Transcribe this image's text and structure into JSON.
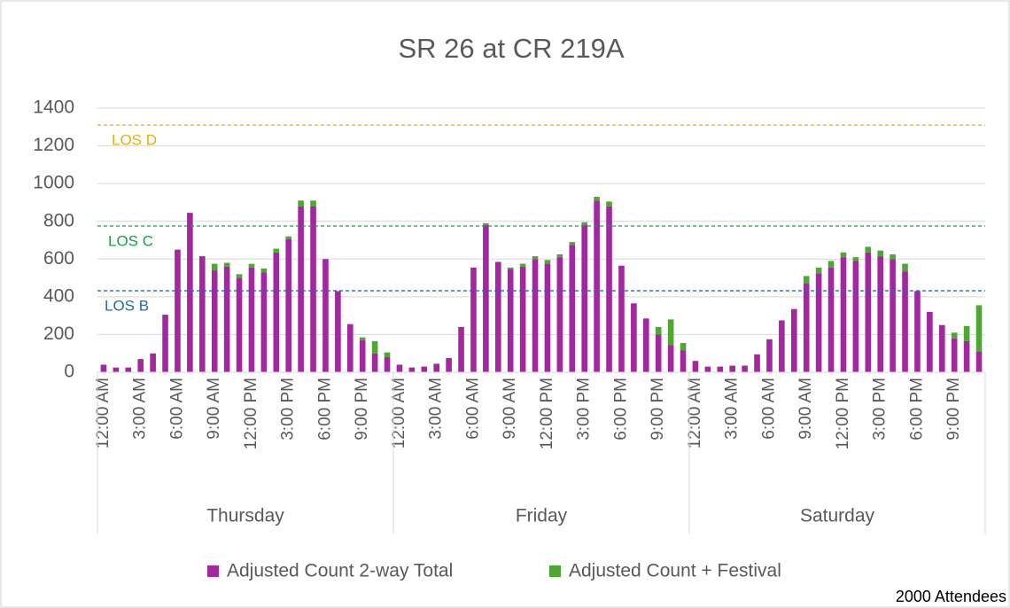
{
  "chart_data": {
    "type": "stacked_bar",
    "title": "SR 26 at CR 219A",
    "note": "2000 Attendees",
    "groups": [
      "Thursday",
      "Friday",
      "Saturday"
    ],
    "categories": [
      "12:00 AM",
      null,
      null,
      "3:00 AM",
      null,
      null,
      "6:00 AM",
      null,
      null,
      "9:00 AM",
      null,
      null,
      "12:00 PM",
      null,
      null,
      "3:00 PM",
      null,
      null,
      "6:00 PM",
      null,
      null,
      "9:00 PM",
      null,
      null,
      "12:00 AM",
      null,
      null,
      "3:00 AM",
      null,
      null,
      "6:00 AM",
      null,
      null,
      "9:00 AM",
      null,
      null,
      "12:00 PM",
      null,
      null,
      "3:00 PM",
      null,
      null,
      "6:00 PM",
      null,
      null,
      "9:00 PM",
      null,
      null,
      "12:00 AM",
      null,
      null,
      "3:00 AM",
      null,
      null,
      "6:00 AM",
      null,
      null,
      "9:00 AM",
      null,
      null,
      "12:00 PM",
      null,
      null,
      "3:00 PM",
      null,
      null,
      "6:00 PM",
      null,
      null,
      "9:00 PM",
      null,
      null
    ],
    "series": [
      {
        "name": "Adjusted Count 2-way Total",
        "color": "#a3279f",
        "values": [
          40,
          25,
          25,
          70,
          100,
          305,
          650,
          845,
          615,
          540,
          560,
          500,
          555,
          530,
          635,
          705,
          880,
          880,
          600,
          430,
          255,
          170,
          100,
          80,
          40,
          25,
          30,
          45,
          75,
          240,
          555,
          780,
          585,
          545,
          560,
          600,
          575,
          610,
          675,
          780,
          910,
          880,
          565,
          365,
          285,
          200,
          145,
          115,
          60,
          30,
          30,
          35,
          35,
          95,
          175,
          275,
          335,
          470,
          525,
          555,
          610,
          590,
          635,
          615,
          600,
          535,
          430,
          320,
          250,
          180,
          165,
          110
        ]
      },
      {
        "name": "Adjusted Count + Festival",
        "color": "#4ea72e",
        "values": [
          0,
          0,
          0,
          0,
          0,
          0,
          0,
          0,
          0,
          35,
          20,
          20,
          20,
          20,
          20,
          15,
          30,
          30,
          0,
          0,
          0,
          15,
          65,
          25,
          0,
          0,
          0,
          0,
          0,
          0,
          0,
          10,
          0,
          10,
          15,
          15,
          20,
          15,
          15,
          15,
          20,
          25,
          0,
          0,
          0,
          40,
          135,
          40,
          0,
          0,
          0,
          0,
          0,
          0,
          0,
          0,
          0,
          40,
          30,
          35,
          25,
          20,
          30,
          30,
          25,
          40,
          0,
          0,
          0,
          30,
          80,
          245
        ]
      }
    ],
    "reference_lines": [
      {
        "label": "LOS D",
        "value": 1310,
        "color": "#e8b00c"
      },
      {
        "label": "LOS C",
        "value": 775,
        "color": "#1a9e4a"
      },
      {
        "label": "LOS B",
        "value": 432,
        "color": "#1f6bb5"
      }
    ],
    "ylim": [
      0,
      1400
    ],
    "yticks": [
      0,
      200,
      400,
      600,
      800,
      1000,
      1200,
      1400
    ],
    "grid": true,
    "legend": "bottom"
  }
}
